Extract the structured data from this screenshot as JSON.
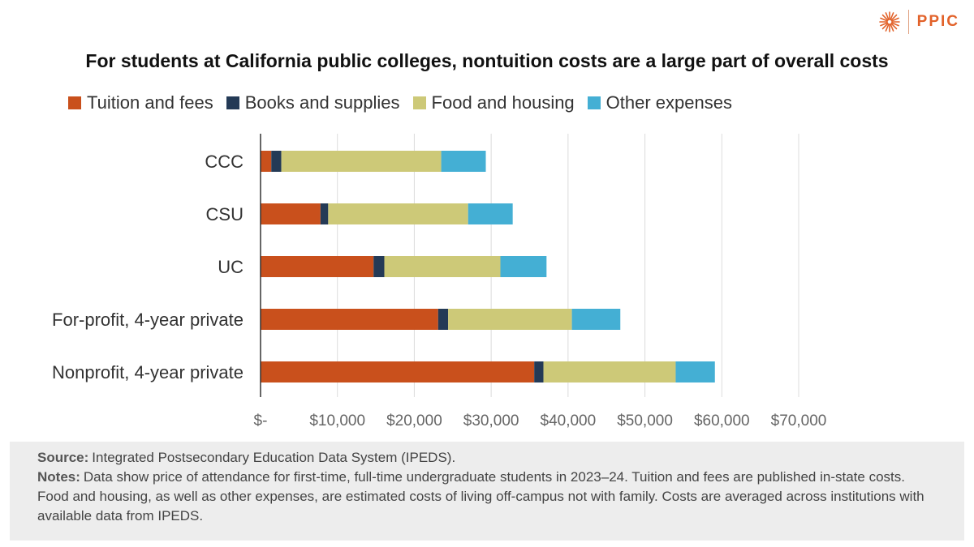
{
  "brand": {
    "name": "PPIC",
    "color": "#e2622a"
  },
  "title": "For students at California public colleges, nontuition costs are a large part of overall costs",
  "chart_data": {
    "type": "bar",
    "orientation": "horizontal",
    "stacked": true,
    "title": "For students at California public colleges, nontuition costs are a large part of overall costs",
    "categories": [
      "CCC",
      "CSU",
      "UC",
      "For-profit, 4-year private",
      "Nonprofit, 4-year private"
    ],
    "series": [
      {
        "name": "Tuition and fees",
        "color": "#c9501c",
        "values": [
          1400,
          7800,
          14700,
          23100,
          35600
        ]
      },
      {
        "name": "Books and supplies",
        "color": "#243a56",
        "values": [
          1300,
          1000,
          1400,
          1300,
          1200
        ]
      },
      {
        "name": "Food and housing",
        "color": "#cdc978",
        "values": [
          20800,
          18200,
          15100,
          16100,
          17200
        ]
      },
      {
        "name": "Other expenses",
        "color": "#44afd4",
        "values": [
          5800,
          5800,
          6000,
          6300,
          5100
        ]
      }
    ],
    "xlim": [
      0,
      70000
    ],
    "x_ticks": [
      0,
      10000,
      20000,
      30000,
      40000,
      50000,
      60000,
      70000
    ],
    "x_tick_labels": [
      "$-",
      "$10,000",
      "$20,000",
      "$30,000",
      "$40,000",
      "$50,000",
      "$60,000",
      "$70,000"
    ],
    "grid": true,
    "legend_position": "top-left",
    "xlabel": "",
    "ylabel": ""
  },
  "footer": {
    "source_label": "Source:",
    "source_text": "Integrated Postsecondary Education Data System (IPEDS).",
    "notes_label": "Notes:",
    "notes_text": "Data show price of attendance for first-time, full-time undergraduate students in 2023–24. Tuition and fees are published in-state costs. Food and housing, as well as other expenses, are estimated costs of living off-campus not with family. Costs are averaged across institutions with available data from IPEDS."
  }
}
